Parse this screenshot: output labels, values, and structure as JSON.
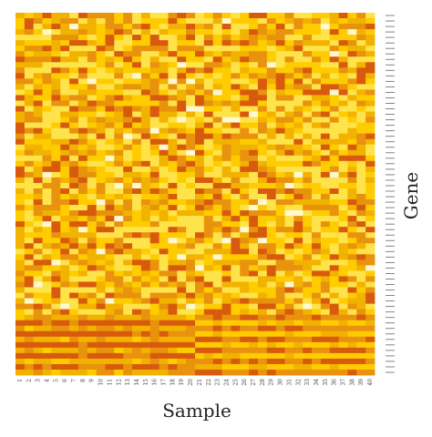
{
  "chart_data": {
    "type": "heatmap",
    "title": "",
    "xlabel": "Sample",
    "ylabel": "Gene",
    "x_categories": [
      "1",
      "2",
      "3",
      "4",
      "5",
      "6",
      "7",
      "8",
      "9",
      "10",
      "11",
      "12",
      "13",
      "14",
      "15",
      "16",
      "17",
      "18",
      "19",
      "20",
      "21",
      "22",
      "23",
      "24",
      "25",
      "26",
      "27",
      "28",
      "29",
      "30",
      "31",
      "32",
      "33",
      "34",
      "35",
      "36",
      "37",
      "38",
      "39",
      "40"
    ],
    "row_count": 66,
    "row_labels_visible": false,
    "color_scale": [
      "#fff8d0",
      "#ffe34a",
      "#ffcc00",
      "#f2b200",
      "#e8920e",
      "#d85a0c"
    ],
    "group_split_after_sample": 20,
    "grid": false,
    "legend": "none"
  }
}
